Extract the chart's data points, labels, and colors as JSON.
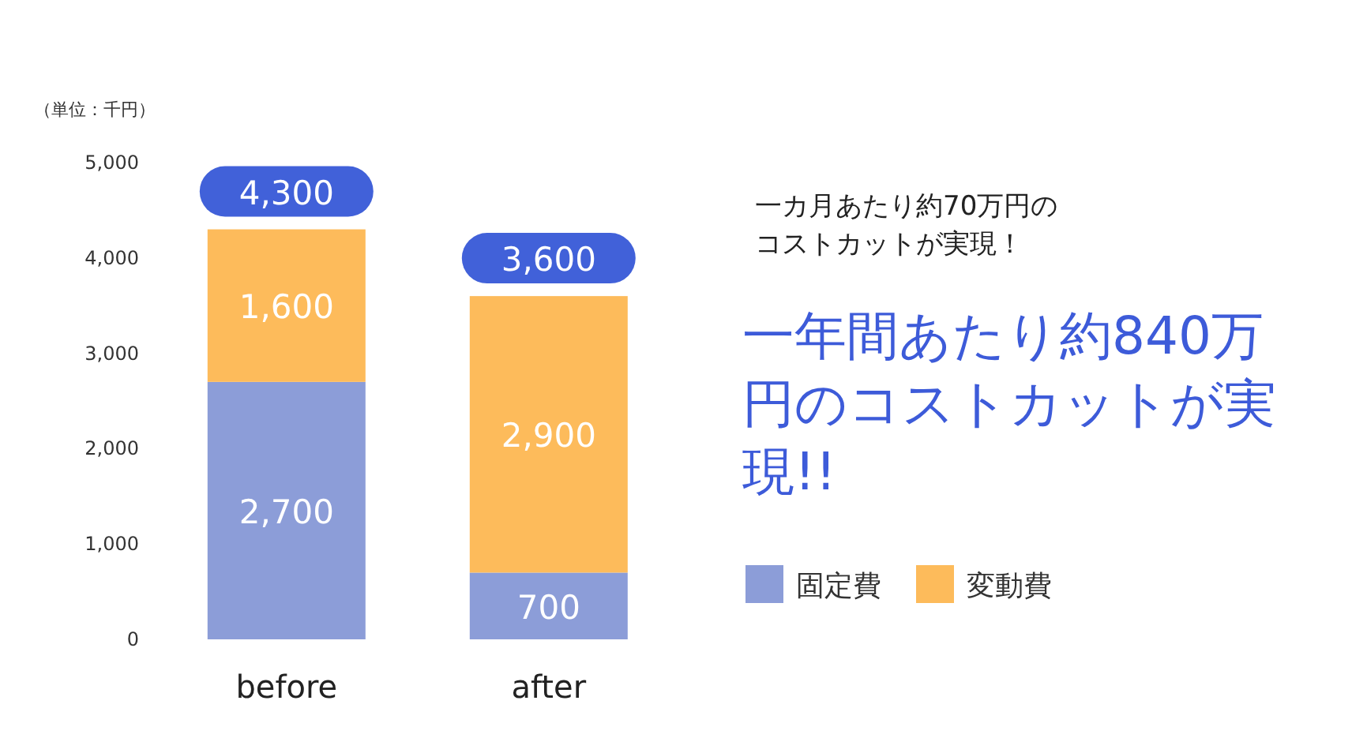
{
  "chart_data": {
    "type": "bar",
    "stacked": true,
    "ylabel": "（単位：千円）",
    "categories": [
      "before",
      "after"
    ],
    "series": [
      {
        "name": "固定費",
        "color": "#8c9dd8",
        "values": [
          2700,
          700
        ],
        "value_labels": [
          "2,700",
          "700"
        ]
      },
      {
        "name": "変動費",
        "color": "#fdbb5b",
        "values": [
          1600,
          2900
        ],
        "value_labels": [
          "1,600",
          "2,900"
        ]
      }
    ],
    "totals": [
      "4,300",
      "3,600"
    ],
    "ylim": [
      0,
      5000
    ],
    "yticks": [
      0,
      {
        "value": 1000,
        "label": "1,000"
      },
      {
        "value": 2000,
        "label": "2,000"
      },
      {
        "value": 3000,
        "label": "3,000"
      },
      {
        "value": 4000,
        "label": "4,000"
      },
      {
        "value": 5000,
        "label": "5,000"
      }
    ],
    "grid": false,
    "legend": "right",
    "annotations": [
      "一カ月あたり約70万円のコストカットが実現！",
      "一年間あたり約840万円のコストカットが実現!!"
    ]
  }
}
